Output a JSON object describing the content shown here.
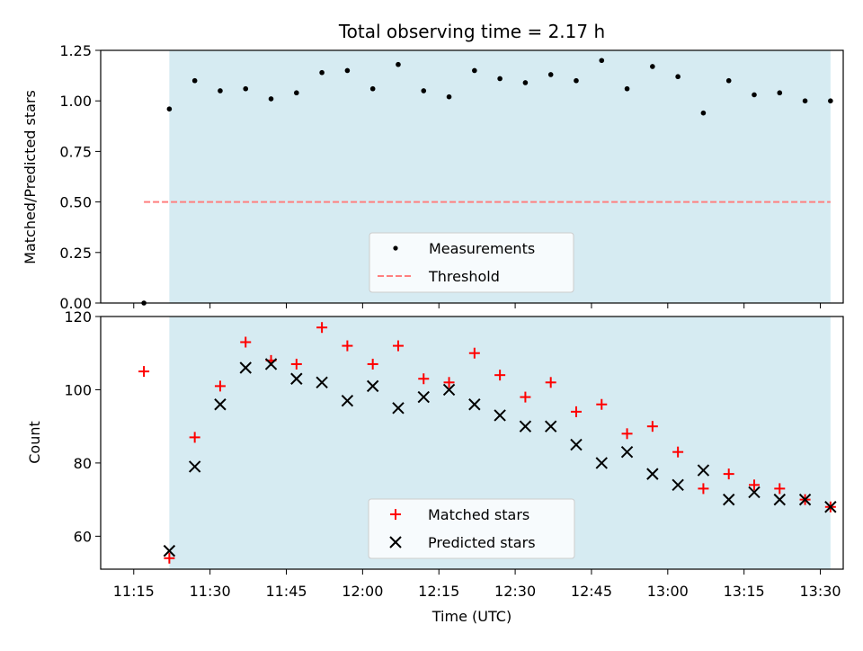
{
  "chart_data": [
    {
      "type": "scatter",
      "title": "Total observing time = 2.17 h",
      "xlabel": "",
      "ylabel": "Matched/Predicted stars",
      "ylim": [
        0,
        1.25
      ],
      "yticks": [
        "0.00",
        "0.25",
        "0.50",
        "0.75",
        "1.00",
        "1.25"
      ],
      "legend": {
        "placement": "lower-center",
        "entries": [
          "Measurements",
          "Threshold"
        ]
      },
      "shaded_window": {
        "start": "11:22",
        "end": "13:32",
        "color": "#add8e6"
      },
      "threshold": {
        "value": 0.5,
        "from": "11:17",
        "to": "13:32",
        "color": "#ff7f7f",
        "style": "dashed"
      },
      "series": [
        {
          "name": "Measurements",
          "color": "#000000",
          "marker": "dot",
          "x": [
            "11:17",
            "11:22",
            "11:27",
            "11:32",
            "11:37",
            "11:42",
            "11:47",
            "11:52",
            "11:57",
            "12:02",
            "12:07",
            "12:12",
            "12:17",
            "12:22",
            "12:27",
            "12:32",
            "12:37",
            "12:42",
            "12:47",
            "12:52",
            "12:57",
            "13:02",
            "13:07",
            "13:12",
            "13:17",
            "13:22",
            "13:27",
            "13:32"
          ],
          "y": [
            0.0,
            0.96,
            1.1,
            1.05,
            1.06,
            1.01,
            1.04,
            1.14,
            1.15,
            1.06,
            1.18,
            1.05,
            1.02,
            1.15,
            1.11,
            1.09,
            1.13,
            1.1,
            1.2,
            1.06,
            1.17,
            1.12,
            0.94,
            1.1,
            1.03,
            1.04,
            1.0,
            1.0
          ]
        }
      ]
    },
    {
      "type": "scatter",
      "title": "",
      "xlabel": "Time (UTC)",
      "ylabel": "Count",
      "ylim": [
        51,
        120
      ],
      "yticks": [
        "60",
        "80",
        "100",
        "120"
      ],
      "xticks": [
        "11:15",
        "11:30",
        "11:45",
        "12:00",
        "12:15",
        "12:30",
        "12:45",
        "13:00",
        "13:15",
        "13:30"
      ],
      "legend": {
        "placement": "lower-center",
        "entries": [
          "Matched stars",
          "Predicted stars"
        ]
      },
      "shaded_window": {
        "start": "11:22",
        "end": "13:32",
        "color": "#add8e6"
      },
      "series": [
        {
          "name": "Matched stars",
          "color": "#ff0000",
          "marker": "plus",
          "x": [
            "11:17",
            "11:22",
            "11:27",
            "11:32",
            "11:37",
            "11:42",
            "11:47",
            "11:52",
            "11:57",
            "12:02",
            "12:07",
            "12:12",
            "12:17",
            "12:22",
            "12:27",
            "12:32",
            "12:37",
            "12:42",
            "12:47",
            "12:52",
            "12:57",
            "13:02",
            "13:07",
            "13:12",
            "13:17",
            "13:22",
            "13:27",
            "13:32"
          ],
          "y": [
            105,
            54,
            87,
            101,
            113,
            108,
            107,
            117,
            112,
            107,
            112,
            103,
            102,
            110,
            104,
            98,
            102,
            94,
            96,
            88,
            90,
            83,
            73,
            77,
            74,
            73,
            70,
            68
          ]
        },
        {
          "name": "Predicted stars",
          "color": "#000000",
          "marker": "x",
          "x": [
            "11:22",
            "11:27",
            "11:32",
            "11:37",
            "11:42",
            "11:47",
            "11:52",
            "11:57",
            "12:02",
            "12:07",
            "12:12",
            "12:17",
            "12:22",
            "12:27",
            "12:32",
            "12:37",
            "12:42",
            "12:47",
            "12:52",
            "12:57",
            "13:02",
            "13:07",
            "13:12",
            "13:17",
            "13:22",
            "13:27",
            "13:32"
          ],
          "y": [
            56,
            79,
            96,
            106,
            107,
            103,
            102,
            97,
            101,
            95,
            98,
            100,
            96,
            93,
            90,
            90,
            85,
            80,
            83,
            77,
            74,
            78,
            70,
            72,
            70,
            70,
            68
          ]
        }
      ]
    }
  ]
}
